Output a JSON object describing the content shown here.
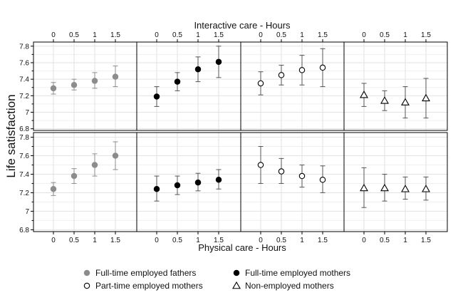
{
  "chart_data": {
    "type": "scatter",
    "top_xlabel": "Interactive care - Hours",
    "bottom_xlabel": "Physical care - Hours",
    "ylabel": "Life satisfaction",
    "x_ticks": [
      "0",
      "0.5",
      "1",
      "1.5"
    ],
    "x_values": [
      0,
      0.5,
      1,
      1.5
    ],
    "y_ticks": [
      "6.8",
      "7",
      "7.2",
      "7.4",
      "7.6",
      "7.8"
    ],
    "y_tick_values": [
      6.8,
      7.0,
      7.2,
      7.4,
      7.6,
      7.8
    ],
    "ylim": [
      6.78,
      7.85
    ],
    "grid": true,
    "legend_position": "bottom",
    "series": [
      {
        "name": "Full-time employed fathers",
        "marker": "circle",
        "fill": "#8c8c8c",
        "stroke": "#8c8c8c",
        "legend_col": 0,
        "legend_row": 0
      },
      {
        "name": "Full-time employed mothers",
        "marker": "circle",
        "fill": "#000000",
        "stroke": "#000000",
        "legend_col": 1,
        "legend_row": 0
      },
      {
        "name": "Part-time employed mothers",
        "marker": "circle",
        "fill": "#ffffff",
        "stroke": "#000000",
        "legend_col": 0,
        "legend_row": 1
      },
      {
        "name": "Non-employed mothers",
        "marker": "triangle",
        "fill": "#ffffff",
        "stroke": "#000000",
        "legend_col": 1,
        "legend_row": 1
      }
    ],
    "panels": [
      {
        "row": "interactive",
        "series": 0,
        "x": [
          0,
          0.5,
          1,
          1.5
        ],
        "y": [
          7.29,
          7.33,
          7.38,
          7.43
        ],
        "lower": [
          7.22,
          7.27,
          7.29,
          7.31
        ],
        "upper": [
          7.36,
          7.4,
          7.48,
          7.56
        ]
      },
      {
        "row": "interactive",
        "series": 1,
        "x": [
          0,
          0.5,
          1,
          1.5
        ],
        "y": [
          7.19,
          7.37,
          7.52,
          7.61
        ],
        "lower": [
          7.07,
          7.26,
          7.37,
          7.42
        ],
        "upper": [
          7.31,
          7.48,
          7.67,
          7.8
        ]
      },
      {
        "row": "interactive",
        "series": 2,
        "x": [
          0,
          0.5,
          1,
          1.5
        ],
        "y": [
          7.35,
          7.45,
          7.51,
          7.54
        ],
        "lower": [
          7.21,
          7.33,
          7.33,
          7.31
        ],
        "upper": [
          7.49,
          7.57,
          7.69,
          7.77
        ]
      },
      {
        "row": "interactive",
        "series": 3,
        "x": [
          0,
          0.5,
          1,
          1.5
        ],
        "y": [
          7.21,
          7.14,
          7.12,
          7.17
        ],
        "lower": [
          7.07,
          7.02,
          6.93,
          6.93
        ],
        "upper": [
          7.35,
          7.26,
          7.31,
          7.41
        ]
      },
      {
        "row": "physical",
        "series": 0,
        "x": [
          0,
          0.5,
          1,
          1.5
        ],
        "y": [
          7.24,
          7.38,
          7.5,
          7.6
        ],
        "lower": [
          7.17,
          7.3,
          7.38,
          7.45
        ],
        "upper": [
          7.31,
          7.46,
          7.62,
          7.75
        ]
      },
      {
        "row": "physical",
        "series": 1,
        "x": [
          0,
          0.5,
          1,
          1.5
        ],
        "y": [
          7.24,
          7.28,
          7.31,
          7.34
        ],
        "lower": [
          7.11,
          7.18,
          7.22,
          7.24
        ],
        "upper": [
          7.38,
          7.38,
          7.41,
          7.45
        ]
      },
      {
        "row": "physical",
        "series": 2,
        "x": [
          0,
          0.5,
          1,
          1.5
        ],
        "y": [
          7.5,
          7.43,
          7.38,
          7.34
        ],
        "lower": [
          7.3,
          7.3,
          7.26,
          7.2
        ],
        "upper": [
          7.7,
          7.57,
          7.5,
          7.49
        ]
      },
      {
        "row": "physical",
        "series": 3,
        "x": [
          0,
          0.5,
          1,
          1.5
        ],
        "y": [
          7.25,
          7.25,
          7.24,
          7.24
        ],
        "lower": [
          7.04,
          7.11,
          7.13,
          7.12
        ],
        "upper": [
          7.47,
          7.4,
          7.37,
          7.37
        ]
      }
    ]
  }
}
